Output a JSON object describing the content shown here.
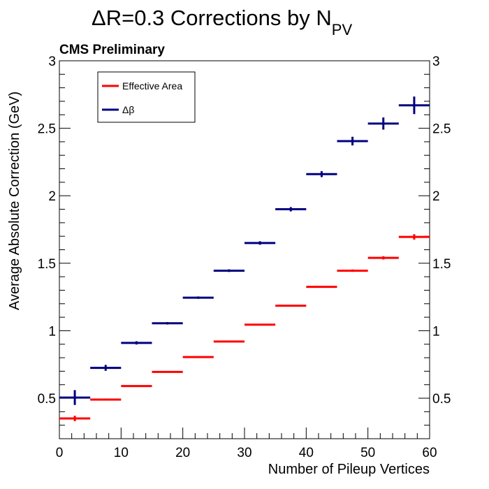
{
  "chart_data": {
    "type": "scatter",
    "title": "ΔR=0.3 Corrections by N",
    "title_subscript": "PV",
    "annotation": "CMS Preliminary",
    "xlabel": "Number of Pileup Vertices",
    "ylabel": "Average Absolute Correction (GeV)",
    "xlim": [
      0,
      60
    ],
    "ylim": [
      0.2,
      3.0
    ],
    "x_tick_labels": [
      "0",
      "10",
      "20",
      "30",
      "40",
      "50",
      "60"
    ],
    "y_tick_labels": [
      "0.5",
      "1",
      "1.5",
      "2",
      "2.5",
      "3"
    ],
    "x_bin_width": 5,
    "x": [
      2.5,
      7.5,
      12.5,
      17.5,
      22.5,
      27.5,
      32.5,
      37.5,
      42.5,
      47.5,
      52.5,
      57.5
    ],
    "legend_position": "top-left",
    "series": [
      {
        "name": "Effective Area",
        "color": "#ff0000",
        "values": [
          0.35,
          0.49,
          0.59,
          0.695,
          0.805,
          0.92,
          1.045,
          1.185,
          1.325,
          1.445,
          1.54,
          1.695
        ],
        "errors": [
          0.02,
          0.008,
          0.005,
          0.004,
          0.004,
          0.004,
          0.005,
          0.006,
          0.007,
          0.009,
          0.012,
          0.02
        ]
      },
      {
        "name": "Δβ",
        "color": "#000080",
        "values": [
          0.505,
          0.725,
          0.91,
          1.055,
          1.245,
          1.445,
          1.65,
          1.9,
          2.16,
          2.405,
          2.535,
          2.67
        ],
        "errors": [
          0.055,
          0.022,
          0.012,
          0.009,
          0.009,
          0.01,
          0.013,
          0.016,
          0.022,
          0.032,
          0.045,
          0.065
        ]
      }
    ]
  }
}
